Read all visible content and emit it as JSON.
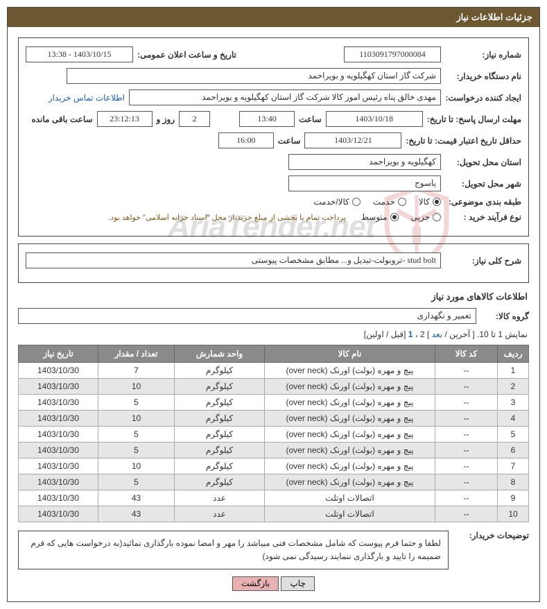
{
  "page_title": "جزئیات اطلاعات نیاز",
  "watermark_text": "AriaTender.net",
  "fields": {
    "need_number_label": "شماره نیاز:",
    "need_number": "1103091797000084",
    "announce_date_label": "تاریخ و ساعت اعلان عمومی:",
    "announce_date": "1403/10/15 - 13:38",
    "buyer_org_label": "نام دستگاه خریدار:",
    "buyer_org": "شرکت گاز استان کهگیلویه و بویراحمد",
    "requester_label": "ایجاد کننده درخواست:",
    "requester": "مهدی خالق پناه رئیس امور کالا شرکت گاز استان کهگیلویه و بویراحمد",
    "contact_link": "اطلاعات تماس خریدار",
    "response_deadline_label": "مهلت ارسال پاسخ: تا تاریخ:",
    "response_date": "1403/10/18",
    "time_label": "ساعت",
    "response_time": "13:40",
    "days": "2",
    "days_and": "روز و",
    "countdown": "23:12:13",
    "remaining_label": "ساعت باقی مانده",
    "price_validity_label": "حداقل تاریخ اعتبار قیمت: تا تاریخ:",
    "price_validity_date": "1403/12/21",
    "price_validity_time": "16:00",
    "delivery_province_label": "استان محل تحویل:",
    "delivery_province": "کهگیلویه و بویراحمد",
    "delivery_city_label": "شهر محل تحویل:",
    "delivery_city": "یاسوج",
    "category_label": "طبقه بندی موضوعی:",
    "cat_goods": "کالا",
    "cat_service": "خدمت",
    "cat_both": "کالا/خدمت",
    "purchase_type_label": "نوع فرآیند خرید :",
    "partial": "جزیی",
    "medium": "متوسط",
    "payment_note": "پرداخت تمام یا بخشی از مبلغ خرید،از محل \"اسناد خزانه اسلامی\" خواهد بود.",
    "general_desc_label": "شرح کلی نیاز:",
    "general_desc": "stud bolt -تروبولت-تبدیل و... مطابق مشخصات پیوستی",
    "goods_info_title": "اطلاعات کالاهای مورد نیاز",
    "goods_group_label": "گروه کالا:",
    "goods_group": "تعمیر و نگهداری",
    "pagination_text": "نمایش 1 تا 10. [ آخرین /",
    "pagination_next": "بعد",
    "pagination_mid": "] 2 ،",
    "pagination_one": "1",
    "pagination_suffix": "[قبل / اولین]",
    "buyer_notes_label": "توضیحات خریدار:",
    "buyer_notes": "لطفا و حتما فرم پیوست که شامل مشخصات فنی میباشد را مهر و امضا نموده بارگذاری نمائید(به درخواست هایی که فرم ضمیمه را تایید و بارگذاری ننمایند رسیدگی نمی شود)",
    "btn_print": "چاپ",
    "btn_back": "بازگشت"
  },
  "table": {
    "columns": [
      "ردیف",
      "کد کالا",
      "نام کالا",
      "واحد شمارش",
      "تعداد / مقدار",
      "تاریخ نیاز"
    ],
    "rows": [
      [
        "1",
        "--",
        "پیچ و مهره (بولت) اورنک (over neck)",
        "کیلوگرم",
        "7",
        "1403/10/30"
      ],
      [
        "2",
        "--",
        "پیچ و مهره (بولت) اورنک (over neck)",
        "کیلوگرم",
        "10",
        "1403/10/30"
      ],
      [
        "3",
        "--",
        "پیچ و مهره (بولت) اورنک (over neck)",
        "کیلوگرم",
        "5",
        "1403/10/30"
      ],
      [
        "4",
        "--",
        "پیچ و مهره (بولت) اورنک (over neck)",
        "کیلوگرم",
        "10",
        "1403/10/30"
      ],
      [
        "5",
        "--",
        "پیچ و مهره (بولت) اورنک (over neck)",
        "کیلوگرم",
        "5",
        "1403/10/30"
      ],
      [
        "6",
        "--",
        "پیچ و مهره (بولت) اورنک (over neck)",
        "کیلوگرم",
        "5",
        "1403/10/30"
      ],
      [
        "7",
        "--",
        "پیچ و مهره (بولت) اورنک (over neck)",
        "کیلوگرم",
        "10",
        "1403/10/30"
      ],
      [
        "8",
        "--",
        "پیچ و مهره (بولت) اورنک (over neck)",
        "کیلوگرم",
        "5",
        "1403/10/30"
      ],
      [
        "9",
        "--",
        "اتصالات اوتلت",
        "عدد",
        "43",
        "1403/10/30"
      ],
      [
        "10",
        "--",
        "اتصالات اوتلت",
        "عدد",
        "43",
        "1403/10/30"
      ]
    ]
  },
  "colors": {
    "header_bg": "#6d5730",
    "table_header_bg": "#8a8a8a",
    "row_alt": "#e6e6e6",
    "link": "#1a5faa",
    "back_btn": "#e8b2b2",
    "wm_red": "#c02020"
  }
}
